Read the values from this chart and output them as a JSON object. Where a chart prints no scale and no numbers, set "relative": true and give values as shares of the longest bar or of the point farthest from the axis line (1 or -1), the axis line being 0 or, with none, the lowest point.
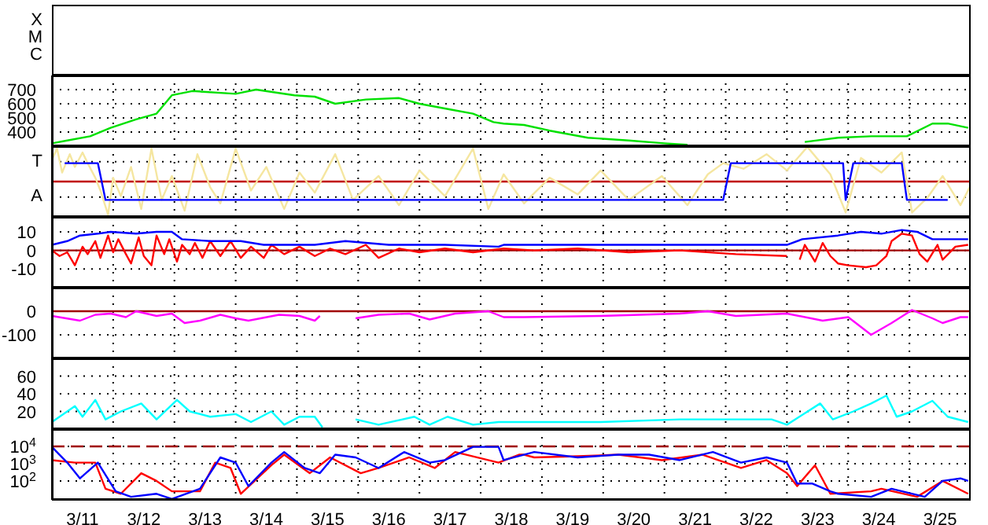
{
  "chart_data": [
    {
      "type": "other",
      "annotations": [
        "X",
        "M",
        "C"
      ]
    },
    {
      "type": "line",
      "xlim": [
        "--03-11",
        "--03-26"
      ],
      "xticks": [
        {
          "value": "--03-11T12:00",
          "label": "3/11"
        },
        {
          "value": "--03-12",
          "label": null
        },
        {
          "value": "--03-12T12:00",
          "label": "3/12"
        },
        {
          "value": "--03-13",
          "label": null
        },
        {
          "value": "--03-13T12:00",
          "label": "3/13"
        },
        {
          "value": "--03-14",
          "label": null
        },
        {
          "value": "--03-14T12:00",
          "label": "3/14"
        },
        {
          "value": "--03-15",
          "label": null
        },
        {
          "value": "--03-15T12:00",
          "label": "3/15"
        },
        {
          "value": "--03-16",
          "label": null
        },
        {
          "value": "--03-16T12:00",
          "label": "3/16"
        },
        {
          "value": "--03-17",
          "label": null
        },
        {
          "value": "--03-17T12:00",
          "label": "3/17"
        },
        {
          "value": "--03-18",
          "label": null
        },
        {
          "value": "--03-18T12:00",
          "label": "3/18"
        },
        {
          "value": "--03-19",
          "label": null
        },
        {
          "value": "--03-19T12:00",
          "label": "3/19"
        },
        {
          "value": "--03-20",
          "label": null
        },
        {
          "value": "--03-20T12:00",
          "label": "3/20"
        },
        {
          "value": "--03-21",
          "label": null
        },
        {
          "value": "--03-21T12:00",
          "label": "3/21"
        },
        {
          "value": "--03-22",
          "label": null
        },
        {
          "value": "--03-22T12:00",
          "label": "3/22"
        },
        {
          "value": "--03-23",
          "label": null
        },
        {
          "value": "--03-23T12:00",
          "label": "3/23"
        },
        {
          "value": "--03-24",
          "label": null
        },
        {
          "value": "--03-24T12:00",
          "label": "3/24"
        },
        {
          "value": "--03-25",
          "label": null
        },
        {
          "value": "--03-25T12:00",
          "label": "3/25"
        }
      ],
      "ylim": [
        300,
        800
      ],
      "yticks": [
        400,
        500,
        600,
        700
      ],
      "grid": true,
      "tick_labels": "y",
      "series": [
        {
          "color": "#00e000",
          "x": [
            "--03-11T00:00",
            "--03-11T06:00",
            "--03-11T15:00",
            "--03-11T23:00",
            "--03-12T09:00",
            "--03-12T17:00",
            "--03-12T23:00",
            "--03-13T07:00",
            "--03-14T00:00",
            "--03-14T08:00",
            "--03-14T23:00",
            "--03-15T07:00",
            "--03-15T15:00",
            "--03-16T03:00",
            "--03-16T16:00",
            "--03-17T00:00",
            "--03-17T12:00",
            "--03-17T21:00",
            "--03-18T05:00",
            "--03-18T09:00",
            "--03-18T17:00",
            "--03-19T03:00",
            "--03-19T18:00",
            "--03-20T10:00",
            "--03-21T00:00",
            "--03-21T09:00",
            "--03-22T12:00",
            "--03-23T07:00",
            "--03-23T20:00",
            "--03-24T09:00",
            "--03-24T23:00",
            "--03-25T09:00",
            "--03-25T15:00",
            "--03-25T23:00"
          ],
          "values": [
            320,
            340,
            370,
            430,
            490,
            530,
            660,
            690,
            670,
            700,
            660,
            650,
            600,
            630,
            640,
            600,
            560,
            530,
            470,
            460,
            450,
            410,
            360,
            340,
            320,
            310,
            null,
            330,
            360,
            370,
            370,
            460,
            460,
            430
          ]
        }
      ]
    },
    {
      "type": "line",
      "relative": true,
      "xlim": [
        "--03-11",
        "--03-26"
      ],
      "xticks": [
        {
          "value": "--03-11T12:00",
          "label": "3/11"
        },
        {
          "value": "--03-12",
          "label": null
        },
        {
          "value": "--03-12T12:00",
          "label": "3/12"
        },
        {
          "value": "--03-13",
          "label": null
        },
        {
          "value": "--03-13T12:00",
          "label": "3/13"
        },
        {
          "value": "--03-14",
          "label": null
        },
        {
          "value": "--03-14T12:00",
          "label": "3/14"
        },
        {
          "value": "--03-15",
          "label": null
        },
        {
          "value": "--03-15T12:00",
          "label": "3/15"
        },
        {
          "value": "--03-16",
          "label": null
        },
        {
          "value": "--03-16T12:00",
          "label": "3/16"
        },
        {
          "value": "--03-17",
          "label": null
        },
        {
          "value": "--03-17T12:00",
          "label": "3/17"
        },
        {
          "value": "--03-18",
          "label": null
        },
        {
          "value": "--03-18T12:00",
          "label": "3/18"
        },
        {
          "value": "--03-19",
          "label": null
        },
        {
          "value": "--03-19T12:00",
          "label": "3/19"
        },
        {
          "value": "--03-20",
          "label": null
        },
        {
          "value": "--03-20T12:00",
          "label": "3/20"
        },
        {
          "value": "--03-21",
          "label": null
        },
        {
          "value": "--03-21T12:00",
          "label": "3/21"
        },
        {
          "value": "--03-22",
          "label": null
        },
        {
          "value": "--03-22T12:00",
          "label": "3/22"
        },
        {
          "value": "--03-23",
          "label": null
        },
        {
          "value": "--03-23T12:00",
          "label": "3/23"
        },
        {
          "value": "--03-24",
          "label": null
        },
        {
          "value": "--03-24T12:00",
          "label": "3/24"
        },
        {
          "value": "--03-25",
          "label": null
        },
        {
          "value": "--03-25T12:00",
          "label": "3/25"
        }
      ],
      "grid": true,
      "tick_labels": false,
      "annotations": [
        "T",
        "A"
      ],
      "ref_lines": [
        {
          "axis": "y",
          "value": 0,
          "color": "#c00000"
        }
      ],
      "series": [
        {
          "color": "#f5e6a0",
          "x": [
            "--03-11T00:00",
            "--03-11T02:00",
            "--03-11T04:00",
            "--03-11T07:00",
            "--03-11T09:00",
            "--03-11T12:00",
            "--03-11T14:00",
            "--03-11T17:00",
            "--03-11T19:00",
            "--03-11T22:00",
            "--03-12T00:00",
            "--03-12T03:00",
            "--03-12T07:00",
            "--03-12T11:00",
            "--03-12T15:00",
            "--03-12T19:00",
            "--03-12T23:00",
            "--03-13T04:00",
            "--03-13T09:00",
            "--03-13T14:00",
            "--03-13T18:00",
            "--03-14T00:00",
            "--03-14T06:00",
            "--03-14T12:00",
            "--03-14T19:00",
            "--03-15T01:00",
            "--03-15T07:00",
            "--03-15T15:00",
            "--03-15T22:00",
            "--03-16T08:00",
            "--03-16T16:00",
            "--03-17T00:00",
            "--03-17T10:00",
            "--03-17T21:00",
            "--03-18T03:00",
            "--03-18T09:00",
            "--03-18T17:00",
            "--03-19T03:00",
            "--03-19T14:00",
            "--03-19T23:00",
            "--03-20T10:00",
            "--03-20T23:00",
            "--03-21T09:00",
            "--03-21T17:00",
            "--03-21T23:00",
            "--03-22T07:00",
            "--03-22T16:00",
            "--03-23T00:00",
            "--03-23T08:00",
            "--03-23T17:00",
            "--03-23T23:00",
            "--03-24T05:00",
            "--03-24T13:00",
            "--03-24T21:00",
            "--03-25T01:00",
            "--03-25T07:00",
            "--03-25T13:00",
            "--03-25T20:00",
            "--03-26T00:00"
          ],
          "values": [
            0.63,
            0.95,
            0.26,
            0.79,
            0.42,
            0.84,
            0.53,
            0.11,
            -0.26,
            -0.95,
            0.11,
            -0.42,
            0.42,
            -0.79,
            0.95,
            -0.53,
            0.16,
            -0.84,
            0.79,
            -0.16,
            -0.63,
            0.95,
            -0.26,
            0.42,
            -0.79,
            0.26,
            -0.32,
            0.79,
            -0.53,
            0.16,
            -0.68,
            0.32,
            -0.42,
            0.95,
            -0.79,
            0.21,
            -0.63,
            0.11,
            -0.37,
            0.32,
            -0.53,
            0.16,
            -0.68,
            0.21,
            0.53,
            0.37,
            0.79,
            0.32,
            1,
            0.21,
            -0.89,
            0.68,
            0.26,
            0.84,
            -0.89,
            -0.47,
            0.16,
            -0.68,
            -0.11
          ]
        },
        {
          "color": "#0000ff",
          "x": [
            "--03-11T05:00",
            "--03-11T18:00",
            "--03-11T21:00",
            "--03-21T23:00",
            "--03-22T02:00",
            "--03-23T22:00",
            "--03-23T23:00",
            "--03-24T02:00",
            "--03-24T21:00",
            "--03-24T23:00",
            "--03-25T15:00"
          ],
          "values": [
            0.53,
            0.53,
            -0.53,
            -0.53,
            0.53,
            0.53,
            -0.53,
            0.53,
            0.53,
            -0.53,
            -0.53
          ]
        }
      ]
    },
    {
      "type": "line",
      "xlim": [
        "--03-11",
        "--03-26"
      ],
      "xticks": [
        {
          "value": "--03-11T12:00",
          "label": "3/11"
        },
        {
          "value": "--03-12",
          "label": null
        },
        {
          "value": "--03-12T12:00",
          "label": "3/12"
        },
        {
          "value": "--03-13",
          "label": null
        },
        {
          "value": "--03-13T12:00",
          "label": "3/13"
        },
        {
          "value": "--03-14",
          "label": null
        },
        {
          "value": "--03-14T12:00",
          "label": "3/14"
        },
        {
          "value": "--03-15",
          "label": null
        },
        {
          "value": "--03-15T12:00",
          "label": "3/15"
        },
        {
          "value": "--03-16",
          "label": null
        },
        {
          "value": "--03-16T12:00",
          "label": "3/16"
        },
        {
          "value": "--03-17",
          "label": null
        },
        {
          "value": "--03-17T12:00",
          "label": "3/17"
        },
        {
          "value": "--03-18",
          "label": null
        },
        {
          "value": "--03-18T12:00",
          "label": "3/18"
        },
        {
          "value": "--03-19",
          "label": null
        },
        {
          "value": "--03-19T12:00",
          "label": "3/19"
        },
        {
          "value": "--03-20",
          "label": null
        },
        {
          "value": "--03-20T12:00",
          "label": "3/20"
        },
        {
          "value": "--03-21",
          "label": null
        },
        {
          "value": "--03-21T12:00",
          "label": "3/21"
        },
        {
          "value": "--03-22",
          "label": null
        },
        {
          "value": "--03-22T12:00",
          "label": "3/22"
        },
        {
          "value": "--03-23",
          "label": null
        },
        {
          "value": "--03-23T12:00",
          "label": "3/23"
        },
        {
          "value": "--03-24",
          "label": null
        },
        {
          "value": "--03-24T12:00",
          "label": "3/24"
        },
        {
          "value": "--03-25",
          "label": null
        },
        {
          "value": "--03-25T12:00",
          "label": "3/25"
        }
      ],
      "ylim": [
        -20,
        18
      ],
      "yticks": [
        -10,
        0,
        10
      ],
      "grid": true,
      "tick_labels": "y",
      "ref_lines": [
        {
          "axis": "y",
          "value": 0,
          "color": "#a00000"
        }
      ],
      "series": [
        {
          "color": "#ff0000",
          "x": [
            "--03-11T00:00",
            "--03-11T03:00",
            "--03-11T06:00",
            "--03-11T09:00",
            "--03-11T12:00",
            "--03-11T14:00",
            "--03-11T17:00",
            "--03-11T19:00",
            "--03-11T22:00",
            "--03-12T00:00",
            "--03-12T02:00",
            "--03-12T05:00",
            "--03-12T07:00",
            "--03-12T10:00",
            "--03-12T12:00",
            "--03-12T15:00",
            "--03-12T17:00",
            "--03-12T20:00",
            "--03-12T22:00",
            "--03-13T01:00",
            "--03-13T03:00",
            "--03-13T06:00",
            "--03-13T08:00",
            "--03-13T11:00",
            "--03-13T14:00",
            "--03-13T18:00",
            "--03-13T22:00",
            "--03-14T02:00",
            "--03-14T06:00",
            "--03-14T11:00",
            "--03-14T14:00",
            "--03-14T19:00",
            "--03-15T01:00",
            "--03-15T07:00",
            "--03-15T13:00",
            "--03-15T19:00",
            "--03-16T03:00",
            "--03-16T08:00",
            "--03-16T16:00",
            "--03-17T00:00",
            "--03-17T10:00",
            "--03-17T21:00",
            "--03-18T09:00",
            "--03-18T21:00",
            "--03-19T14:00",
            "--03-20T10:00",
            "--03-21T06:00",
            "--03-22T04:00",
            "--03-23T00:00",
            "--03-23T04:00",
            "--03-23T05:00",
            "--03-23T07:00",
            "--03-23T11:00",
            "--03-23T14:00",
            "--03-23T17:00",
            "--03-23T20:00",
            "--03-24T00:00",
            "--03-24T07:00",
            "--03-24T11:00",
            "--03-24T15:00",
            "--03-24T17:00",
            "--03-24T21:00",
            "--03-25T01:00",
            "--03-25T04:00",
            "--03-25T07:00",
            "--03-25T11:00",
            "--03-25T13:00",
            "--03-25T18:00",
            "--03-25T23:00"
          ],
          "values": [
            0,
            -3,
            -1,
            -8,
            2,
            -2,
            5,
            -4,
            8,
            -1,
            6,
            -2,
            -7,
            7,
            -3,
            -8,
            8,
            -2,
            6,
            -6,
            3,
            -2,
            4,
            -4,
            5,
            -3,
            5,
            -4,
            2,
            -4,
            3,
            -2,
            2,
            -3,
            1,
            -2,
            3,
            -4,
            1,
            -1,
            1,
            -1,
            1,
            0,
            1,
            -1,
            0,
            -2,
            -3,
            null,
            -5,
            3,
            -6,
            4,
            -3,
            -7,
            -8,
            -9,
            -8,
            -3,
            5,
            9,
            8,
            -2,
            -6,
            3,
            -5,
            2,
            3
          ]
        },
        {
          "color": "#0000ff",
          "x": [
            "--03-11T00:00",
            "--03-11T06:00",
            "--03-11T11:00",
            "--03-11T18:00",
            "--03-11T23:00",
            "--03-12T09:00",
            "--03-12T17:00",
            "--03-12T23:00",
            "--03-13T03:00",
            "--03-13T14:00",
            "--03-14T02:00",
            "--03-14T11:00",
            "--03-15T07:00",
            "--03-15T19:00",
            "--03-16T12:00",
            "--03-17T10:00",
            "--03-18T07:00",
            "--03-18T09:00",
            "--03-19T10:00",
            "--03-20T10:00",
            "--03-21T17:00",
            "--03-23T00:00",
            "--03-23T06:00",
            "--03-23T20:00",
            "--03-24T05:00",
            "--03-24T13:00",
            "--03-24T21:00",
            "--03-25T03:00",
            "--03-25T09:00",
            "--03-25T23:00"
          ],
          "values": [
            3,
            5,
            8,
            9,
            10,
            9,
            10,
            10,
            6,
            5,
            5,
            3,
            3,
            5,
            3,
            3,
            2,
            3,
            3,
            3,
            3,
            3,
            6,
            8,
            10,
            9,
            11,
            10,
            6,
            6
          ]
        }
      ]
    },
    {
      "type": "line",
      "xlim": [
        "--03-11",
        "--03-26"
      ],
      "xticks": [
        {
          "value": "--03-11T12:00",
          "label": "3/11"
        },
        {
          "value": "--03-12",
          "label": null
        },
        {
          "value": "--03-12T12:00",
          "label": "3/12"
        },
        {
          "value": "--03-13",
          "label": null
        },
        {
          "value": "--03-13T12:00",
          "label": "3/13"
        },
        {
          "value": "--03-14",
          "label": null
        },
        {
          "value": "--03-14T12:00",
          "label": "3/14"
        },
        {
          "value": "--03-15",
          "label": null
        },
        {
          "value": "--03-15T12:00",
          "label": "3/15"
        },
        {
          "value": "--03-16",
          "label": null
        },
        {
          "value": "--03-16T12:00",
          "label": "3/16"
        },
        {
          "value": "--03-17",
          "label": null
        },
        {
          "value": "--03-17T12:00",
          "label": "3/17"
        },
        {
          "value": "--03-18",
          "label": null
        },
        {
          "value": "--03-18T12:00",
          "label": "3/18"
        },
        {
          "value": "--03-19",
          "label": null
        },
        {
          "value": "--03-19T12:00",
          "label": "3/19"
        },
        {
          "value": "--03-20",
          "label": null
        },
        {
          "value": "--03-20T12:00",
          "label": "3/20"
        },
        {
          "value": "--03-21",
          "label": null
        },
        {
          "value": "--03-21T12:00",
          "label": "3/21"
        },
        {
          "value": "--03-22",
          "label": null
        },
        {
          "value": "--03-22T12:00",
          "label": "3/22"
        },
        {
          "value": "--03-23",
          "label": null
        },
        {
          "value": "--03-23T12:00",
          "label": "3/23"
        },
        {
          "value": "--03-24",
          "label": null
        },
        {
          "value": "--03-24T12:00",
          "label": "3/24"
        },
        {
          "value": "--03-25",
          "label": null
        },
        {
          "value": "--03-25T12:00",
          "label": "3/25"
        }
      ],
      "ylim": [
        -200,
        100
      ],
      "yticks": [
        -100,
        0
      ],
      "grid": true,
      "tick_labels": "y",
      "ref_lines": [
        {
          "axis": "y",
          "value": 0,
          "color": "#a00000"
        }
      ],
      "series": [
        {
          "color": "#ff00ff",
          "x": [
            "--03-11T00:00",
            "--03-11T11:00",
            "--03-11T17:00",
            "--03-11T23:00",
            "--03-12T05:00",
            "--03-12T09:00",
            "--03-12T17:00",
            "--03-12T23:00",
            "--03-13T04:00",
            "--03-13T10:00",
            "--03-13T18:00",
            "--03-14T00:00",
            "--03-14T05:00",
            "--03-14T17:00",
            "--03-15T01:00",
            "--03-15T07:00",
            "--03-15T09:00",
            "--03-15T17:00",
            "--03-15T23:00",
            "--03-16T08:00",
            "--03-16T20:00",
            "--03-17T04:00",
            "--03-17T14:00",
            "--03-18T03:00",
            "--03-18T09:00",
            "--03-18T17:00",
            "--03-19T23:00",
            "--03-21T06:00",
            "--03-21T17:00",
            "--03-22T04:00",
            "--03-23T00:00",
            "--03-23T14:00",
            "--03-24T00:00",
            "--03-24T09:00",
            "--03-24T17:00",
            "--03-25T01:00",
            "--03-25T09:00",
            "--03-25T13:00",
            "--03-25T20:00",
            "--03-25T23:00"
          ],
          "values": [
            -20,
            -40,
            -15,
            -10,
            -25,
            0,
            -20,
            -10,
            -50,
            -40,
            -15,
            -30,
            -40,
            -15,
            -20,
            -40,
            -20,
            null,
            -30,
            -15,
            -10,
            -35,
            -10,
            0,
            -25,
            -25,
            -20,
            -10,
            0,
            -20,
            -10,
            -40,
            -25,
            -100,
            -50,
            5,
            -30,
            -50,
            -25,
            -25
          ]
        }
      ]
    },
    {
      "type": "line",
      "xlim": [
        "--03-11",
        "--03-26"
      ],
      "xticks": [
        {
          "value": "--03-11T12:00",
          "label": "3/11"
        },
        {
          "value": "--03-12",
          "label": null
        },
        {
          "value": "--03-12T12:00",
          "label": "3/12"
        },
        {
          "value": "--03-13",
          "label": null
        },
        {
          "value": "--03-13T12:00",
          "label": "3/13"
        },
        {
          "value": "--03-14",
          "label": null
        },
        {
          "value": "--03-14T12:00",
          "label": "3/14"
        },
        {
          "value": "--03-15",
          "label": null
        },
        {
          "value": "--03-15T12:00",
          "label": "3/15"
        },
        {
          "value": "--03-16",
          "label": null
        },
        {
          "value": "--03-16T12:00",
          "label": "3/16"
        },
        {
          "value": "--03-17",
          "label": null
        },
        {
          "value": "--03-17T12:00",
          "label": "3/17"
        },
        {
          "value": "--03-18",
          "label": null
        },
        {
          "value": "--03-18T12:00",
          "label": "3/18"
        },
        {
          "value": "--03-19",
          "label": null
        },
        {
          "value": "--03-19T12:00",
          "label": "3/19"
        },
        {
          "value": "--03-20",
          "label": null
        },
        {
          "value": "--03-20T12:00",
          "label": "3/20"
        },
        {
          "value": "--03-21",
          "label": null
        },
        {
          "value": "--03-21T12:00",
          "label": "3/21"
        },
        {
          "value": "--03-22",
          "label": null
        },
        {
          "value": "--03-22T12:00",
          "label": "3/22"
        },
        {
          "value": "--03-23",
          "label": null
        },
        {
          "value": "--03-23T12:00",
          "label": "3/23"
        },
        {
          "value": "--03-24",
          "label": null
        },
        {
          "value": "--03-24T12:00",
          "label": "3/24"
        },
        {
          "value": "--03-25",
          "label": null
        },
        {
          "value": "--03-25T12:00",
          "label": "3/25"
        }
      ],
      "ylim": [
        0,
        80
      ],
      "yticks": [
        20,
        40,
        60
      ],
      "grid": true,
      "tick_labels": "y",
      "series": [
        {
          "color": "#00ffff",
          "x": [
            "--03-11T00:00",
            "--03-11T09:00",
            "--03-11T12:00",
            "--03-11T17:00",
            "--03-11T21:00",
            "--03-12T03:00",
            "--03-12T11:00",
            "--03-12T17:00",
            "--03-13T01:00",
            "--03-13T06:00",
            "--03-13T14:00",
            "--03-14T00:00",
            "--03-14T06:00",
            "--03-14T14:00",
            "--03-14T19:00",
            "--03-15T01:00",
            "--03-15T07:00",
            "--03-15T10:00",
            "--03-15T17:00",
            "--03-15T23:00",
            "--03-16T08:00",
            "--03-16T22:00",
            "--03-17T04:00",
            "--03-17T11:00",
            "--03-17T21:00",
            "--03-18T07:00",
            "--03-18T17:00",
            "--03-19T23:00",
            "--03-21T06:00",
            "--03-22T01:00",
            "--03-22T18:00",
            "--03-23T00:00",
            "--03-23T13:00",
            "--03-23T18:00",
            "--03-24T02:00",
            "--03-24T09:00",
            "--03-24T15:00",
            "--03-24T19:00",
            "--03-25T01:00",
            "--03-25T09:00",
            "--03-25T15:00",
            "--03-25T23:00"
          ],
          "values": [
            8,
            26,
            14,
            33,
            11,
            20,
            29,
            11,
            33,
            20,
            14,
            17,
            8,
            20,
            5,
            14,
            14,
            2,
            null,
            11,
            5,
            14,
            5,
            14,
            5,
            8,
            8,
            8,
            11,
            11,
            11,
            5,
            29,
            11,
            20,
            29,
            38,
            14,
            20,
            32,
            14,
            8
          ]
        }
      ]
    },
    {
      "type": "line",
      "log": true,
      "xlim": [
        "--03-11",
        "--03-26"
      ],
      "xticks": [
        {
          "value": "--03-11T12:00",
          "label": "3/11"
        },
        {
          "value": "--03-12",
          "label": null
        },
        {
          "value": "--03-12T12:00",
          "label": "3/12"
        },
        {
          "value": "--03-13",
          "label": null
        },
        {
          "value": "--03-13T12:00",
          "label": "3/13"
        },
        {
          "value": "--03-14",
          "label": null
        },
        {
          "value": "--03-14T12:00",
          "label": "3/14"
        },
        {
          "value": "--03-15",
          "label": null
        },
        {
          "value": "--03-15T12:00",
          "label": "3/15"
        },
        {
          "value": "--03-16",
          "label": null
        },
        {
          "value": "--03-16T12:00",
          "label": "3/16"
        },
        {
          "value": "--03-17",
          "label": null
        },
        {
          "value": "--03-17T12:00",
          "label": "3/17"
        },
        {
          "value": "--03-18",
          "label": null
        },
        {
          "value": "--03-18T12:00",
          "label": "3/18"
        },
        {
          "value": "--03-19",
          "label": null
        },
        {
          "value": "--03-19T12:00",
          "label": "3/19"
        },
        {
          "value": "--03-20",
          "label": null
        },
        {
          "value": "--03-20T12:00",
          "label": "3/20"
        },
        {
          "value": "--03-21",
          "label": null
        },
        {
          "value": "--03-21T12:00",
          "label": "3/21"
        },
        {
          "value": "--03-22",
          "label": null
        },
        {
          "value": "--03-22T12:00",
          "label": "3/22"
        },
        {
          "value": "--03-23",
          "label": null
        },
        {
          "value": "--03-23T12:00",
          "label": "3/23"
        },
        {
          "value": "--03-24",
          "label": null
        },
        {
          "value": "--03-24T12:00",
          "label": "3/24"
        },
        {
          "value": "--03-25",
          "label": null
        },
        {
          "value": "--03-25T12:00",
          "label": "3/25"
        }
      ],
      "ylim": [
        8,
        100000
      ],
      "yticks": [
        {
          "value": 100,
          "label": "10$^{2}$"
        },
        {
          "value": 1000,
          "label": "10$^{3}$"
        },
        {
          "value": 10000,
          "label": "10$^{4}$"
        }
      ],
      "grid": true,
      "ref_lines": [
        {
          "axis": "y",
          "value": 10000,
          "color": "#a00000",
          "line_style": "dashed"
        }
      ],
      "series": [
        {
          "color": "#ff0000",
          "x": [
            "--03-11T00:00",
            "--03-11T09:00",
            "--03-11T17:00",
            "--03-11T21:00",
            "--03-12T03:00",
            "--03-12T11:00",
            "--03-12T17:00",
            "--03-12T23:00",
            "--03-13T10:00",
            "--03-13T16:00",
            "--03-13T22:00",
            "--03-14T02:00",
            "--03-14T14:00",
            "--03-14T19:00",
            "--03-15T05:00",
            "--03-15T13:00",
            "--03-16T01:00",
            "--03-16T08:00",
            "--03-16T20:00",
            "--03-17T06:00",
            "--03-17T14:00",
            "--03-18T07:00",
            "--03-18T15:00",
            "--03-18T17:00",
            "--03-18T21:00",
            "--03-19T14:00",
            "--03-20T06:00",
            "--03-20T23:00",
            "--03-21T15:00",
            "--03-22T06:00",
            "--03-22T16:00",
            "--03-23T00:00",
            "--03-23T04:00",
            "--03-23T11:00",
            "--03-23T17:00",
            "--03-24T09:00",
            "--03-24T13:00",
            "--03-25T03:00",
            "--03-25T13:00",
            "--03-25T23:00"
          ],
          "values": [
            1600,
            1150,
            1150,
            35,
            18,
            280,
            100,
            25,
            25,
            1150,
            560,
            18,
            810,
            3300,
            280,
            2300,
            280,
            560,
            2300,
            560,
            4700,
            1150,
            3300,
            3300,
            2300,
            2700,
            3300,
            1600,
            3300,
            560,
            1600,
            280,
            50,
            810,
            18,
            25,
            35,
            12,
            100,
            18
          ]
        },
        {
          "color": "#0000ff",
          "x": [
            "--03-11T00:00",
            "--03-11T06:00",
            "--03-11T11:00",
            "--03-11T18:00",
            "--03-12T01:00",
            "--03-12T07:00",
            "--03-12T17:00",
            "--03-12T23:00",
            "--03-13T10:00",
            "--03-13T18:00",
            "--03-14T00:00",
            "--03-14T05:00",
            "--03-14T14:00",
            "--03-14T19:00",
            "--03-15T03:00",
            "--03-15T09:00",
            "--03-15T15:00",
            "--03-15T23:00",
            "--03-16T08:00",
            "--03-16T18:00",
            "--03-17T04:00",
            "--03-17T10:00",
            "--03-17T21:00",
            "--03-18T07:00",
            "--03-18T09:00",
            "--03-18T21:00",
            "--03-19T14:00",
            "--03-20T06:00",
            "--03-20T18:00",
            "--03-21T06:00",
            "--03-21T19:00",
            "--03-22T06:00",
            "--03-22T16:00",
            "--03-23T00:00",
            "--03-23T04:00",
            "--03-23T10:00",
            "--03-23T17:00",
            "--03-23T20:00",
            "--03-24T09:00",
            "--03-24T17:00",
            "--03-25T06:00",
            "--03-25T13:00",
            "--03-25T20:00",
            "--03-25T23:00"
          ],
          "values": [
            9300,
            1150,
            140,
            1150,
            25,
            12,
            18,
            9,
            35,
            2300,
            1150,
            50,
            1150,
            4700,
            560,
            280,
            3300,
            2300,
            560,
            4700,
            1150,
            1600,
            9300,
            9300,
            1600,
            4700,
            2300,
            3300,
            3300,
            1600,
            4700,
            1150,
            2300,
            1150,
            70,
            70,
            25,
            18,
            12,
            35,
            12,
            100,
            140,
            100
          ]
        }
      ]
    }
  ]
}
